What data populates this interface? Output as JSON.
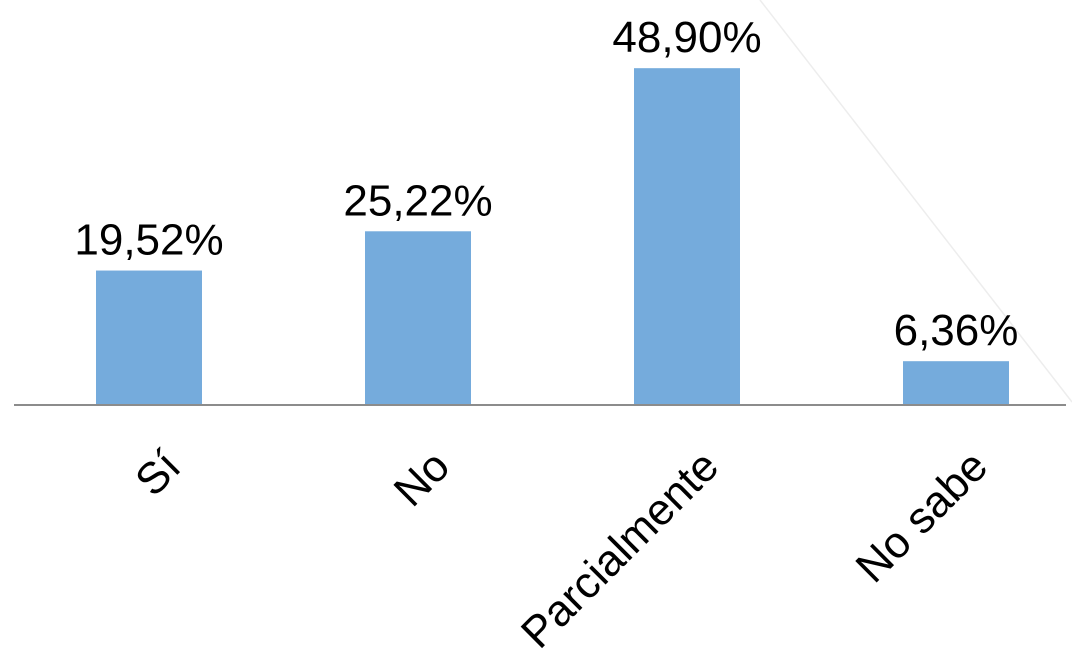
{
  "chart_data": {
    "type": "bar",
    "categories": [
      "Sí",
      "No",
      "Parcialmente",
      "No sabe"
    ],
    "values": [
      19.52,
      25.22,
      48.9,
      6.36
    ],
    "data_labels": [
      "19,52%",
      "25,22%",
      "48,90%",
      "6,36%"
    ],
    "title": "",
    "xlabel": "",
    "ylabel": "",
    "ylim": [
      0,
      50
    ],
    "grid": false,
    "legend": "none",
    "colors": {
      "bar": "#75ABDC",
      "axis": "#8C8C8C",
      "text": "#000000"
    }
  }
}
